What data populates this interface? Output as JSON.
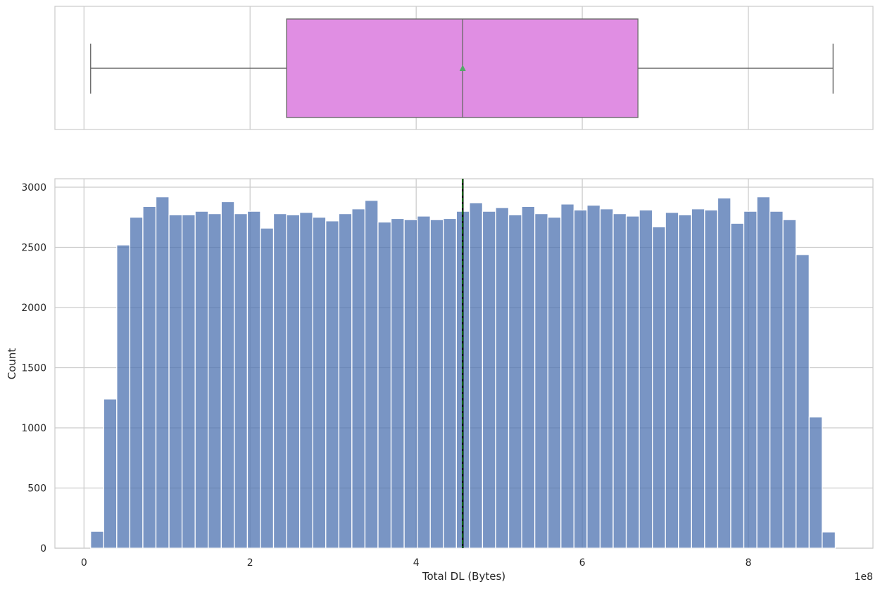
{
  "chart_data": [
    {
      "type": "box",
      "orientation": "horizontal",
      "xlim": [
        -35000000.0,
        950000000.0
      ],
      "grid": true,
      "box_color": "#e08ee3",
      "mean_marker_color": "#55a868",
      "stats": {
        "whisker_low": 8000000.0,
        "q1": 244000000.0,
        "median": 456000000.0,
        "mean": 456000000.0,
        "q3": 667000000.0,
        "whisker_high": 902000000.0
      }
    },
    {
      "type": "histogram",
      "xlabel": "Total DL (Bytes)",
      "ylabel": "Count",
      "xlim": [
        -35000000.0,
        950000000.0
      ],
      "ylim": [
        0,
        3070
      ],
      "grid": true,
      "bar_color": "#4c72b0",
      "offset_text": "1e8",
      "x_ticks": [
        0,
        200000000.0,
        400000000.0,
        600000000.0,
        800000000.0
      ],
      "x_tick_labels": [
        "0",
        "2",
        "4",
        "6",
        "8"
      ],
      "y_ticks": [
        0,
        500,
        1000,
        1500,
        2000,
        2500,
        3000
      ],
      "y_tick_labels": [
        "0",
        "500",
        "1000",
        "1500",
        "2000",
        "2500",
        "3000"
      ],
      "bin_start": 8000000.0,
      "bin_width": 15730000.0,
      "counts": [
        140,
        1240,
        2520,
        2750,
        2840,
        2920,
        2770,
        2770,
        2800,
        2780,
        2880,
        2780,
        2800,
        2660,
        2780,
        2770,
        2790,
        2750,
        2720,
        2780,
        2820,
        2890,
        2710,
        2740,
        2730,
        2760,
        2730,
        2740,
        2800,
        2870,
        2800,
        2830,
        2770,
        2840,
        2780,
        2750,
        2860,
        2810,
        2850,
        2820,
        2780,
        2760,
        2810,
        2670,
        2790,
        2770,
        2820,
        2810,
        2910,
        2700,
        2800,
        2920,
        2800,
        2730,
        2440,
        1090,
        135
      ],
      "mean_line": {
        "value": 456000000.0,
        "color": "#008000"
      },
      "median_line": {
        "value": 456000000.0,
        "color": "#000000"
      }
    }
  ]
}
